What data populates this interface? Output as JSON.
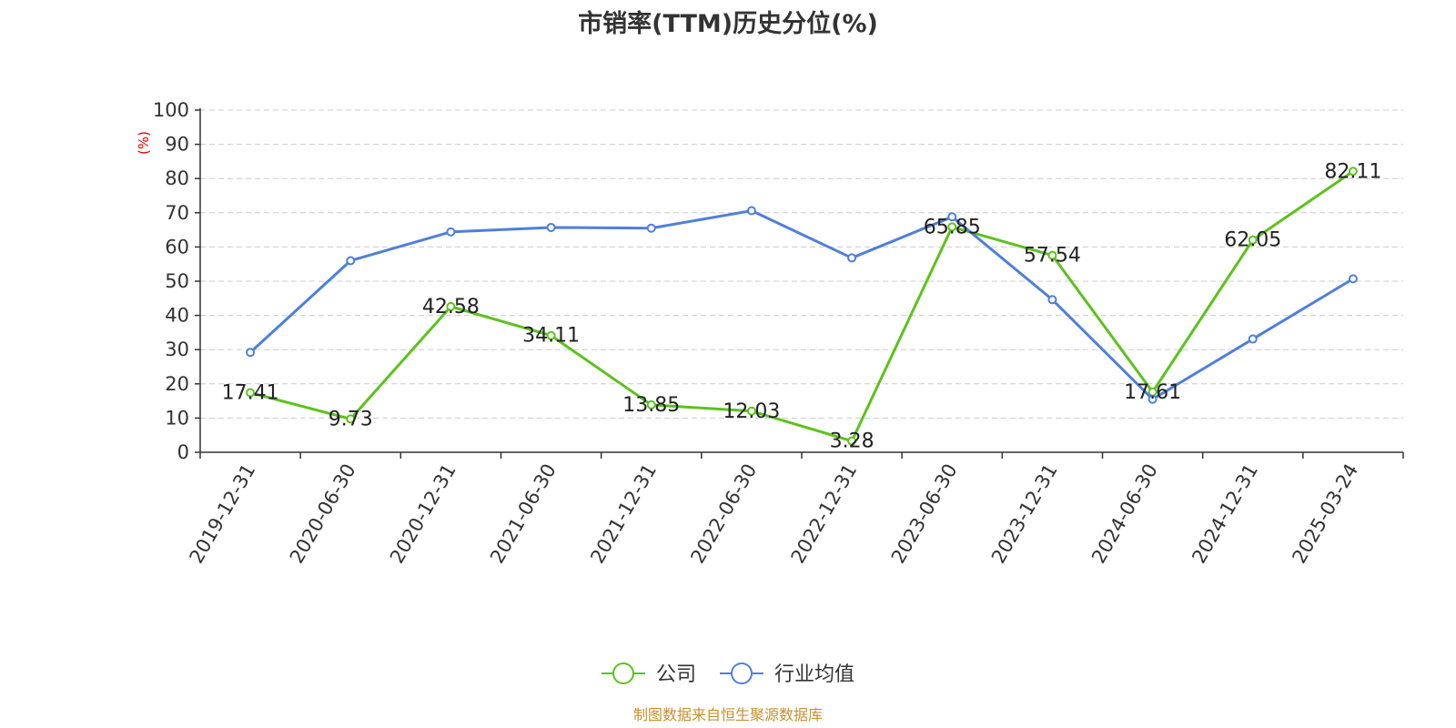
{
  "chart_data": {
    "type": "line",
    "title": "市销率(TTM)历史分位(%)",
    "ylabel": "(%)",
    "xlabel": "",
    "ylim": [
      0,
      100
    ],
    "yticks": [
      0,
      10,
      20,
      30,
      40,
      50,
      60,
      70,
      80,
      90,
      100
    ],
    "grid": true,
    "legend_position": "bottom-center",
    "categories": [
      "2019-12-31",
      "2020-06-30",
      "2020-12-31",
      "2021-06-30",
      "2021-12-31",
      "2022-06-30",
      "2022-12-31",
      "2023-06-30",
      "2023-12-31",
      "2024-06-30",
      "2024-12-31",
      "2025-03-24"
    ],
    "series": [
      {
        "name": "公司",
        "color": "#5cc21b",
        "values": [
          17.41,
          9.73,
          42.58,
          34.11,
          13.85,
          12.03,
          3.28,
          65.85,
          57.54,
          17.61,
          62.05,
          82.11
        ],
        "labels": [
          "17.41",
          "9.73",
          "42.58",
          "34.11",
          "13.85",
          "12.03",
          "3.28",
          "65.85",
          "57.54",
          "17.61",
          "62.05",
          "82.11"
        ]
      },
      {
        "name": "行业均值",
        "color": "#4f7fdc",
        "values": [
          29.2,
          56.0,
          64.4,
          65.7,
          65.5,
          70.6,
          56.8,
          68.8,
          44.6,
          15.5,
          33.1,
          50.7
        ]
      }
    ]
  },
  "footer": {
    "source": "制图数据来自恒生聚源数据库"
  }
}
